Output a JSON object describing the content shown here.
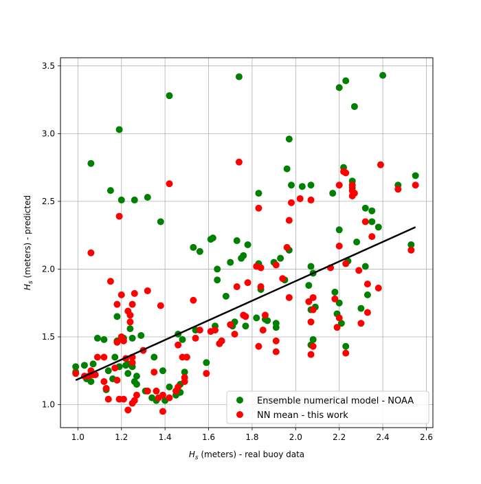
{
  "chart_data": {
    "type": "scatter",
    "title": "",
    "xlabel_main": "H",
    "xlabel_sub": "s",
    "xlabel_rest": " (meters) - real buoy data",
    "ylabel_main": "H",
    "ylabel_sub": "s",
    "ylabel_rest": " (meters) - predicted",
    "xlim": [
      0.92,
      2.63
    ],
    "ylim": [
      0.83,
      3.56
    ],
    "x_ticks": [
      1.0,
      1.2,
      1.4,
      1.6,
      1.8,
      2.0,
      2.2,
      2.4,
      2.6
    ],
    "x_tick_labels": [
      "1.0",
      "1.2",
      "1.4",
      "1.6",
      "1.8",
      "2.0",
      "2.2",
      "2.4",
      "2.6"
    ],
    "y_ticks": [
      1.0,
      1.5,
      2.0,
      2.5,
      3.0,
      3.5
    ],
    "y_tick_labels": [
      "1.0",
      "1.5",
      "2.0",
      "2.5",
      "3.0",
      "3.5"
    ],
    "grid": true,
    "legend_position": "lower-right",
    "series": [
      {
        "name": "Ensemble numerical model - NOAA",
        "color": "#008000",
        "points": [
          [
            0.99,
            1.28
          ],
          [
            0.99,
            1.24
          ],
          [
            1.03,
            1.29
          ],
          [
            1.04,
            1.19
          ],
          [
            1.06,
            2.78
          ],
          [
            1.06,
            1.17
          ],
          [
            1.07,
            1.3
          ],
          [
            1.09,
            1.49
          ],
          [
            1.12,
            1.48
          ],
          [
            1.13,
            1.11
          ],
          [
            1.14,
            1.25
          ],
          [
            1.15,
            2.58
          ],
          [
            1.16,
            1.19
          ],
          [
            1.17,
            1.35
          ],
          [
            1.18,
            1.65
          ],
          [
            1.18,
            1.47
          ],
          [
            1.19,
            3.03
          ],
          [
            1.19,
            1.28
          ],
          [
            1.2,
            2.51
          ],
          [
            1.21,
            1.49
          ],
          [
            1.22,
            1.29
          ],
          [
            1.23,
            1.3
          ],
          [
            1.23,
            1.23
          ],
          [
            1.24,
            1.56
          ],
          [
            1.25,
            1.49
          ],
          [
            1.25,
            1.28
          ],
          [
            1.26,
            2.51
          ],
          [
            1.26,
            1.17
          ],
          [
            1.27,
            1.21
          ],
          [
            1.27,
            1.15
          ],
          [
            1.29,
            1.51
          ],
          [
            1.31,
            1.1
          ],
          [
            1.32,
            2.53
          ],
          [
            1.34,
            1.05
          ],
          [
            1.35,
            1.35
          ],
          [
            1.36,
            1.03
          ],
          [
            1.38,
            2.35
          ],
          [
            1.39,
            1.25
          ],
          [
            1.4,
            1.03
          ],
          [
            1.42,
            3.28
          ],
          [
            1.42,
            1.13
          ],
          [
            1.45,
            1.07
          ],
          [
            1.46,
            1.52
          ],
          [
            1.47,
            1.15
          ],
          [
            1.47,
            1.09
          ],
          [
            1.48,
            1.48
          ],
          [
            1.49,
            1.24
          ],
          [
            1.5,
            1.35
          ],
          [
            1.53,
            2.16
          ],
          [
            1.54,
            1.55
          ],
          [
            1.56,
            2.13
          ],
          [
            1.59,
            1.31
          ],
          [
            1.61,
            2.22
          ],
          [
            1.62,
            2.23
          ],
          [
            1.63,
            1.58
          ],
          [
            1.64,
            1.92
          ],
          [
            1.64,
            2.0
          ],
          [
            1.66,
            1.47
          ],
          [
            1.68,
            1.8
          ],
          [
            1.7,
            2.05
          ],
          [
            1.71,
            1.58
          ],
          [
            1.72,
            1.61
          ],
          [
            1.73,
            2.21
          ],
          [
            1.74,
            3.42
          ],
          [
            1.75,
            2.08
          ],
          [
            1.76,
            2.1
          ],
          [
            1.77,
            1.58
          ],
          [
            1.78,
            2.18
          ],
          [
            1.82,
            1.64
          ],
          [
            1.83,
            2.56
          ],
          [
            1.83,
            2.04
          ],
          [
            1.84,
            1.85
          ],
          [
            1.86,
            1.63
          ],
          [
            1.87,
            1.62
          ],
          [
            1.9,
            2.05
          ],
          [
            1.91,
            1.6
          ],
          [
            1.91,
            1.57
          ],
          [
            1.93,
            2.08
          ],
          [
            1.95,
            1.92
          ],
          [
            1.96,
            2.74
          ],
          [
            1.97,
            2.96
          ],
          [
            1.97,
            2.14
          ],
          [
            1.98,
            2.62
          ],
          [
            2.03,
            2.61
          ],
          [
            2.06,
            1.88
          ],
          [
            2.07,
            2.62
          ],
          [
            2.07,
            2.02
          ],
          [
            2.07,
            1.7
          ],
          [
            2.07,
            1.44
          ],
          [
            2.08,
            1.97
          ],
          [
            2.08,
            1.48
          ],
          [
            2.09,
            1.72
          ],
          [
            2.17,
            2.56
          ],
          [
            2.18,
            1.83
          ],
          [
            2.19,
            1.67
          ],
          [
            2.2,
            3.34
          ],
          [
            2.2,
            2.29
          ],
          [
            2.2,
            1.75
          ],
          [
            2.21,
            1.6
          ],
          [
            2.22,
            2.75
          ],
          [
            2.23,
            3.39
          ],
          [
            2.23,
            1.43
          ],
          [
            2.24,
            2.06
          ],
          [
            2.26,
            2.65
          ],
          [
            2.26,
            2.6
          ],
          [
            2.27,
            3.2
          ],
          [
            2.28,
            2.2
          ],
          [
            2.3,
            1.71
          ],
          [
            2.32,
            2.45
          ],
          [
            2.32,
            2.02
          ],
          [
            2.33,
            1.81
          ],
          [
            2.35,
            2.43
          ],
          [
            2.35,
            2.35
          ],
          [
            2.38,
            2.31
          ],
          [
            2.4,
            3.43
          ],
          [
            2.47,
            2.62
          ],
          [
            2.53,
            2.18
          ],
          [
            2.55,
            2.69
          ]
        ]
      },
      {
        "name": "NN mean - this work",
        "color": "#ff0000",
        "points": [
          [
            0.99,
            1.23
          ],
          [
            1.03,
            1.21
          ],
          [
            1.05,
            1.21
          ],
          [
            1.06,
            2.12
          ],
          [
            1.06,
            1.25
          ],
          [
            1.07,
            1.22
          ],
          [
            1.08,
            1.22
          ],
          [
            1.09,
            1.35
          ],
          [
            1.12,
            1.35
          ],
          [
            1.12,
            1.17
          ],
          [
            1.13,
            1.12
          ],
          [
            1.14,
            1.04
          ],
          [
            1.15,
            1.91
          ],
          [
            1.17,
            1.27
          ],
          [
            1.18,
            1.74
          ],
          [
            1.18,
            1.46
          ],
          [
            1.18,
            1.18
          ],
          [
            1.19,
            2.39
          ],
          [
            1.19,
            1.04
          ],
          [
            1.2,
            1.81
          ],
          [
            1.2,
            1.5
          ],
          [
            1.21,
            1.47
          ],
          [
            1.21,
            1.04
          ],
          [
            1.22,
            1.34
          ],
          [
            1.23,
            1.69
          ],
          [
            1.23,
            0.96
          ],
          [
            1.24,
            1.66
          ],
          [
            1.24,
            1.61
          ],
          [
            1.25,
            1.74
          ],
          [
            1.25,
            1.35
          ],
          [
            1.25,
            1.31
          ],
          [
            1.25,
            1.01
          ],
          [
            1.26,
            1.82
          ],
          [
            1.26,
            1.03
          ],
          [
            1.27,
            1.07
          ],
          [
            1.3,
            1.4
          ],
          [
            1.32,
            1.84
          ],
          [
            1.32,
            1.1
          ],
          [
            1.35,
            1.24
          ],
          [
            1.36,
            1.1
          ],
          [
            1.37,
            1.05
          ],
          [
            1.38,
            1.73
          ],
          [
            1.39,
            0.95
          ],
          [
            1.39,
            1.07
          ],
          [
            1.42,
            2.63
          ],
          [
            1.42,
            1.05
          ],
          [
            1.45,
            1.1
          ],
          [
            1.46,
            1.44
          ],
          [
            1.46,
            1.13
          ],
          [
            1.48,
            1.35
          ],
          [
            1.49,
            1.2
          ],
          [
            1.49,
            1.17
          ],
          [
            1.5,
            1.35
          ],
          [
            1.53,
            1.77
          ],
          [
            1.54,
            1.49
          ],
          [
            1.56,
            1.55
          ],
          [
            1.59,
            1.23
          ],
          [
            1.61,
            1.54
          ],
          [
            1.63,
            1.55
          ],
          [
            1.65,
            1.45
          ],
          [
            1.66,
            1.47
          ],
          [
            1.7,
            1.59
          ],
          [
            1.72,
            1.52
          ],
          [
            1.73,
            1.87
          ],
          [
            1.74,
            2.79
          ],
          [
            1.76,
            1.66
          ],
          [
            1.77,
            1.65
          ],
          [
            1.78,
            1.9
          ],
          [
            1.82,
            2.02
          ],
          [
            1.83,
            2.45
          ],
          [
            1.83,
            1.43
          ],
          [
            1.84,
            2.01
          ],
          [
            1.84,
            1.87
          ],
          [
            1.85,
            1.55
          ],
          [
            1.86,
            1.66
          ],
          [
            1.91,
            2.03
          ],
          [
            1.91,
            1.47
          ],
          [
            1.91,
            1.39
          ],
          [
            1.94,
            1.93
          ],
          [
            1.96,
            2.16
          ],
          [
            1.97,
            2.36
          ],
          [
            1.97,
            1.79
          ],
          [
            1.98,
            2.49
          ],
          [
            2.02,
            2.52
          ],
          [
            2.06,
            1.76
          ],
          [
            2.07,
            2.51
          ],
          [
            2.07,
            1.61
          ],
          [
            2.07,
            1.37
          ],
          [
            2.08,
            1.79
          ],
          [
            2.08,
            1.43
          ],
          [
            2.08,
            1.7
          ],
          [
            2.16,
            2.01
          ],
          [
            2.18,
            1.78
          ],
          [
            2.19,
            1.57
          ],
          [
            2.2,
            2.62
          ],
          [
            2.2,
            2.17
          ],
          [
            2.2,
            1.64
          ],
          [
            2.22,
            2.72
          ],
          [
            2.23,
            2.71
          ],
          [
            2.23,
            2.04
          ],
          [
            2.23,
            1.38
          ],
          [
            2.26,
            2.62
          ],
          [
            2.26,
            2.58
          ],
          [
            2.26,
            2.54
          ],
          [
            2.27,
            2.56
          ],
          [
            2.29,
            1.99
          ],
          [
            2.3,
            1.6
          ],
          [
            2.32,
            2.35
          ],
          [
            2.33,
            1.89
          ],
          [
            2.33,
            1.68
          ],
          [
            2.35,
            2.24
          ],
          [
            2.38,
            1.86
          ],
          [
            2.39,
            2.77
          ],
          [
            2.47,
            2.59
          ],
          [
            2.53,
            2.14
          ],
          [
            2.55,
            2.62
          ]
        ]
      }
    ],
    "fit_line": {
      "color": "#000000",
      "x": [
        0.99,
        2.55
      ],
      "y": [
        1.18,
        2.31
      ]
    }
  }
}
